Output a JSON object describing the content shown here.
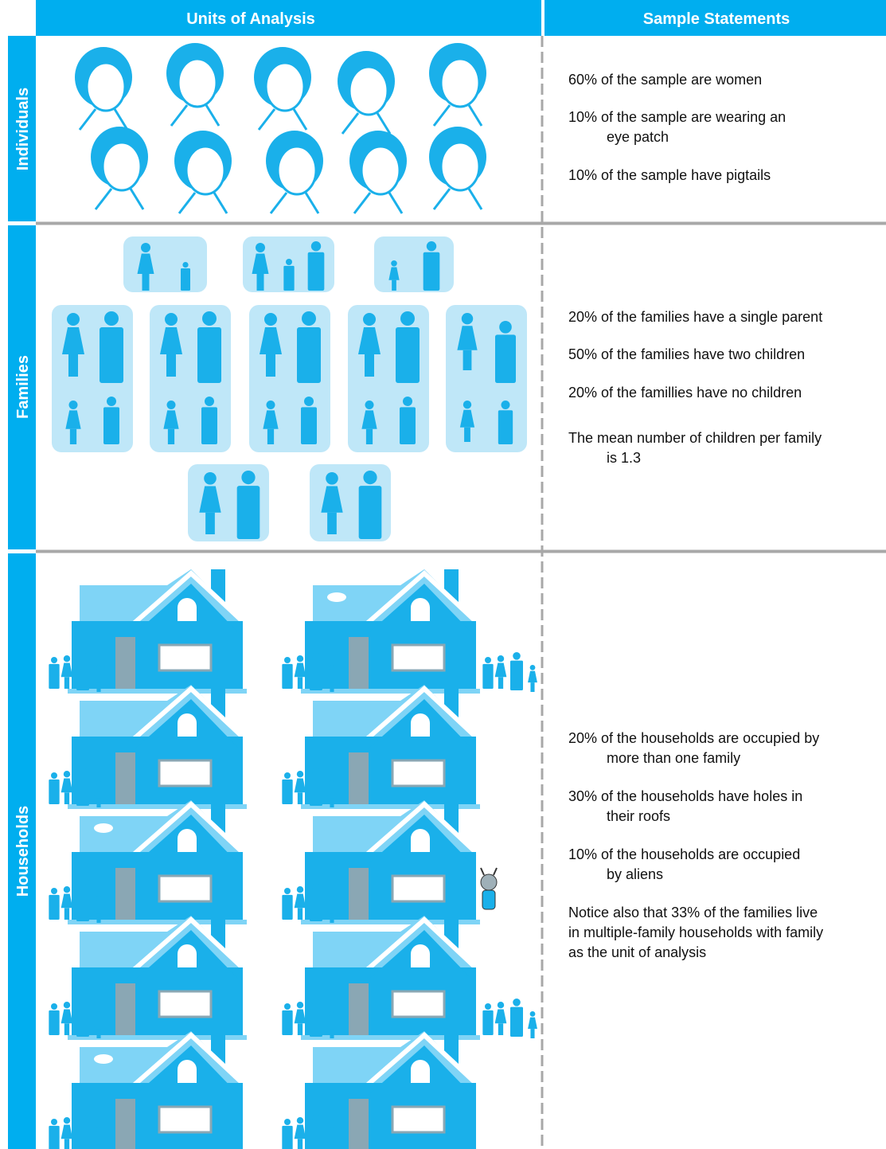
{
  "header": {
    "left": "Units of Analysis",
    "right": "Sample Statements"
  },
  "rows": [
    {
      "label": "Individuals",
      "statements": [
        "60% of the sample are women",
        "10% of the sample are wearing an",
        "eye patch",
        "10% of the sample have pigtails"
      ]
    },
    {
      "label": "Families",
      "statements": [
        "20% of the families have a single parent",
        "50% of the families have two children",
        "20% of the famillies have no children",
        "The mean number of children per family",
        "is 1.3"
      ]
    },
    {
      "label": "Households",
      "statements": [
        "20% of the households are occupied by",
        "more than one family",
        "30% of the households have holes in",
        "their roofs",
        "10% of the households are occupied",
        "by aliens",
        "Notice also that 33% of the families live",
        "in multiple-family households with family",
        "as the unit of analysis"
      ]
    }
  ]
}
